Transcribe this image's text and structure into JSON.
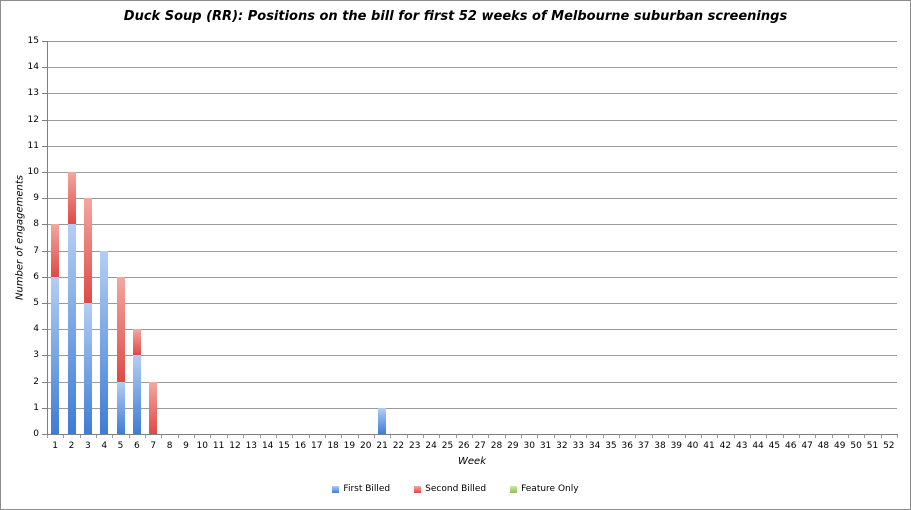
{
  "chart_data": {
    "type": "bar",
    "stacked": true,
    "title": "Duck Soup (RR): Positions on the bill for first 52 weeks of Melbourne suburban screenings",
    "xlabel": "Week",
    "ylabel": "Number of engagements",
    "ylim": [
      0,
      15
    ],
    "ytick_step": 1,
    "grid": true,
    "legend_position": "bottom",
    "categories": [
      1,
      2,
      3,
      4,
      5,
      6,
      7,
      8,
      9,
      10,
      11,
      12,
      13,
      14,
      15,
      16,
      17,
      18,
      19,
      20,
      21,
      22,
      23,
      24,
      25,
      26,
      27,
      28,
      29,
      30,
      31,
      32,
      33,
      34,
      35,
      36,
      37,
      38,
      39,
      40,
      41,
      42,
      43,
      44,
      45,
      46,
      47,
      48,
      49,
      50,
      51,
      52
    ],
    "series": [
      {
        "name": "First Billed",
        "color": "#4f8be0",
        "color_light": "#b3cef4",
        "color_dark": "#3e7cd6",
        "values": [
          6,
          8,
          5,
          7,
          2,
          3,
          0,
          0,
          0,
          0,
          0,
          0,
          0,
          0,
          0,
          0,
          0,
          0,
          0,
          0,
          1,
          0,
          0,
          0,
          0,
          0,
          0,
          0,
          0,
          0,
          0,
          0,
          0,
          0,
          0,
          0,
          0,
          0,
          0,
          0,
          0,
          0,
          0,
          0,
          0,
          0,
          0,
          0,
          0,
          0,
          0,
          0
        ]
      },
      {
        "name": "Second Billed",
        "color": "#e25450",
        "color_light": "#f4a7a2",
        "color_dark": "#df4945",
        "values": [
          2,
          2,
          4,
          0,
          4,
          1,
          2,
          0,
          0,
          0,
          0,
          0,
          0,
          0,
          0,
          0,
          0,
          0,
          0,
          0,
          0,
          0,
          0,
          0,
          0,
          0,
          0,
          0,
          0,
          0,
          0,
          0,
          0,
          0,
          0,
          0,
          0,
          0,
          0,
          0,
          0,
          0,
          0,
          0,
          0,
          0,
          0,
          0,
          0,
          0,
          0,
          0
        ]
      },
      {
        "name": "Feature Only",
        "color": "#a8d06b",
        "color_light": "#cfe9a5",
        "color_dark": "#8fc153",
        "values": [
          0,
          0,
          0,
          0,
          0,
          0,
          0,
          0,
          0,
          0,
          0,
          0,
          0,
          0,
          0,
          0,
          0,
          0,
          0,
          0,
          0,
          0,
          0,
          0,
          0,
          0,
          0,
          0,
          0,
          0,
          0,
          0,
          0,
          0,
          0,
          0,
          0,
          0,
          0,
          0,
          0,
          0,
          0,
          0,
          0,
          0,
          0,
          0,
          0,
          0,
          0,
          0
        ]
      }
    ],
    "colors": {
      "gridline": "#9a9a9a",
      "axis": "#7f7f7f",
      "frame_border": "#8c8c8c",
      "text": "#000000"
    }
  }
}
